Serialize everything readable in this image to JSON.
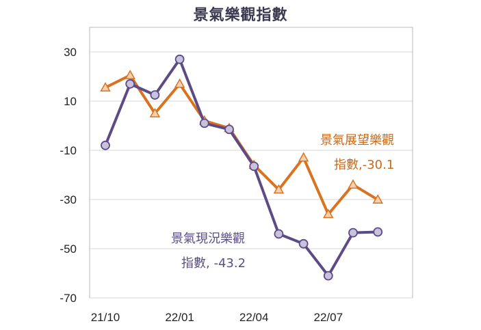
{
  "chart_data": {
    "type": "line",
    "title": "景氣樂觀指數",
    "x": [
      "21/10",
      "21/11",
      "21/12",
      "22/01",
      "22/02",
      "22/03",
      "22/04",
      "22/05",
      "22/06",
      "22/07",
      "22/08",
      "22/09"
    ],
    "x_tick_labels": [
      "21/10",
      "22/01",
      "22/04",
      "22/07"
    ],
    "y_ticks": [
      30,
      10,
      -10,
      -30,
      -50,
      -70
    ],
    "ylim": [
      -70,
      40
    ],
    "grid": true,
    "series": [
      {
        "name": "景氣展望樂觀指數",
        "color": "#d9731f",
        "marker_fill": "#f4cfb1",
        "marker": "triangle",
        "values": [
          15.5,
          20.5,
          5,
          17,
          2,
          -1,
          -16,
          -26,
          -13,
          -36,
          -24,
          -30.1
        ]
      },
      {
        "name": "景氣現況樂觀指數",
        "color": "#5d4b86",
        "marker_fill": "#c9c2de",
        "marker": "circle",
        "values": [
          -8,
          17,
          12.5,
          27,
          1,
          -1.5,
          -16.5,
          -44,
          -48,
          -61,
          -43.5,
          -43.2
        ]
      }
    ],
    "annotations": {
      "orange_line1": "景氣展望樂觀",
      "orange_line2": "指數,-30.1",
      "purple_line1": "景氣現況樂觀",
      "purple_line2": "指數, -43.2"
    }
  }
}
